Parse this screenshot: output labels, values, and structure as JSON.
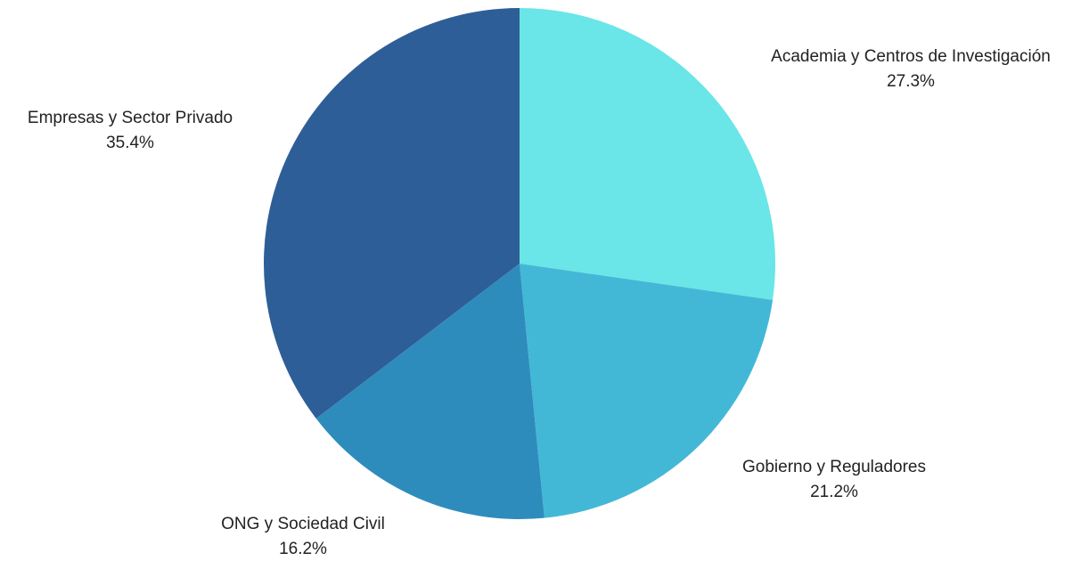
{
  "chart_data": {
    "type": "pie",
    "slices": [
      {
        "label": "Academia y Centros de Investigación",
        "value": 27.3,
        "value_label": "27.3%",
        "color": "#6ae5e8"
      },
      {
        "label": "Gobierno y Reguladores",
        "value": 21.2,
        "value_label": "21.2%",
        "color": "#43b8d6"
      },
      {
        "label": "ONG y Sociedad Civil",
        "value": 16.2,
        "value_label": "16.2%",
        "color": "#2e8cbd"
      },
      {
        "label": "Empresas y Sector Privado",
        "value": 35.4,
        "value_label": "35.4%",
        "color": "#2e5e97"
      }
    ],
    "start_angle": "12 o'clock",
    "direction": "clockwise",
    "legend": "none"
  }
}
